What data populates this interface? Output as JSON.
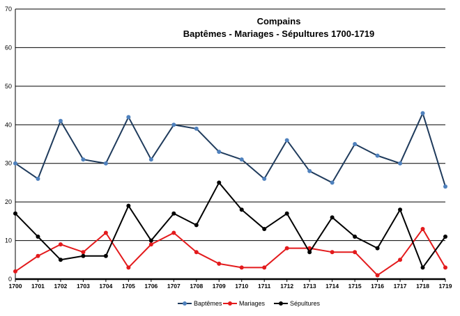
{
  "chart_data": {
    "type": "line",
    "title": "Compains",
    "subtitle": "Baptêmes - Mariages - Sépultures 1700-1719",
    "xlabel": "",
    "ylabel": "",
    "ylim": [
      0,
      70
    ],
    "yticks": [
      0,
      10,
      20,
      30,
      40,
      50,
      60,
      70
    ],
    "grid": true,
    "legend_position": "bottom",
    "categories": [
      "1700",
      "1701",
      "1702",
      "1703",
      "1704",
      "1705",
      "1706",
      "1707",
      "1708",
      "1709",
      "1710",
      "1711",
      "1712",
      "1713",
      "1714",
      "1715",
      "1716",
      "1717",
      "1718",
      "1719"
    ],
    "series": [
      {
        "name": "Baptêmes",
        "color": "#1f3b5c",
        "marker_color": "#4f81bd",
        "values": [
          30,
          26,
          41,
          31,
          30,
          42,
          31,
          40,
          39,
          33,
          31,
          26,
          36,
          28,
          25,
          35,
          32,
          30,
          43,
          24
        ]
      },
      {
        "name": "Mariages",
        "color": "#e31a1c",
        "marker_color": "#e31a1c",
        "values": [
          2,
          6,
          9,
          7,
          12,
          3,
          9,
          12,
          7,
          4,
          3,
          3,
          8,
          8,
          7,
          7,
          1,
          5,
          13,
          3
        ]
      },
      {
        "name": "Sépultures",
        "color": "#000000",
        "marker_color": "#000000",
        "values": [
          17,
          11,
          5,
          6,
          6,
          19,
          10,
          17,
          14,
          25,
          18,
          13,
          17,
          7,
          16,
          11,
          8,
          18,
          3,
          11
        ]
      }
    ]
  }
}
